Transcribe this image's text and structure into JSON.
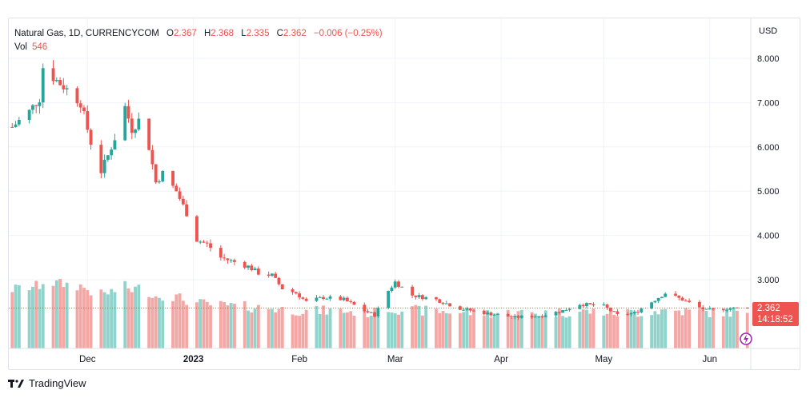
{
  "legend": {
    "symbol": "Natural Gas, 1D, CURRENCYCOM",
    "o_label": "O",
    "o_value": "2.367",
    "h_label": "H",
    "h_value": "2.368",
    "l_label": "L",
    "l_value": "2.335",
    "c_label": "C",
    "c_value": "2.362",
    "change": "−0.006 (−0.25%)",
    "vol_label": "Vol",
    "vol_value": "546"
  },
  "axis": {
    "currency": "USD"
  },
  "price_tag": {
    "price": "2.362",
    "countdown": "14:18:52"
  },
  "brand": {
    "name": "TradingView",
    "logo_icon": "tradingview-logo-icon"
  },
  "colors": {
    "up": "#26a69a",
    "down": "#ef5350",
    "up_vol": "#8fd3cb",
    "down_vol": "#f5a7a6",
    "grid": "#f0f3fa"
  },
  "chart_data": {
    "type": "candlestick",
    "yticks": [
      3,
      4,
      5,
      6,
      7,
      8
    ],
    "ytick_labels": [
      "3.000",
      "4.000",
      "5.000",
      "6.000",
      "7.000",
      "8.000"
    ],
    "ylim": [
      2.2,
      8.6
    ],
    "xticks": [
      {
        "label": "Dec",
        "date": "2022-12-01"
      },
      {
        "label": "2023",
        "date": "2023-01-01"
      },
      {
        "label": "Feb",
        "date": "2023-02-01"
      },
      {
        "label": "Mar",
        "date": "2023-03-01"
      },
      {
        "label": "Apr",
        "date": "2023-04-01"
      },
      {
        "label": "May",
        "date": "2023-05-01"
      },
      {
        "label": "Jun",
        "date": "2023-06-01"
      }
    ],
    "xlim": [
      "2022-11-08",
      "2023-06-13"
    ],
    "last_price": 2.362,
    "close_anchors": [
      [
        "2022-11-09",
        6.45
      ],
      [
        "2022-11-14",
        6.8
      ],
      [
        "2022-11-17",
        7.1
      ],
      [
        "2022-11-18",
        7.8
      ],
      [
        "2022-11-22",
        7.5
      ],
      [
        "2022-11-25",
        7.3
      ],
      [
        "2022-11-29",
        7.0
      ],
      [
        "2022-12-02",
        6.1
      ],
      [
        "2022-12-05",
        5.45
      ],
      [
        "2022-12-07",
        5.8
      ],
      [
        "2022-12-09",
        6.2
      ],
      [
        "2022-12-12",
        6.9
      ],
      [
        "2022-12-14",
        6.4
      ],
      [
        "2022-12-16",
        6.6
      ],
      [
        "2022-12-19",
        6.0
      ],
      [
        "2022-12-21",
        5.2
      ],
      [
        "2022-12-23",
        5.4
      ],
      [
        "2022-12-27",
        5.0
      ],
      [
        "2022-12-30",
        4.5
      ],
      [
        "2023-01-02",
        3.9
      ],
      [
        "2023-01-05",
        3.8
      ],
      [
        "2023-01-09",
        3.5
      ],
      [
        "2023-01-13",
        3.4
      ],
      [
        "2023-01-17",
        3.3
      ],
      [
        "2023-01-20",
        3.15
      ],
      [
        "2023-01-24",
        3.1
      ],
      [
        "2023-01-27",
        2.8
      ],
      [
        "2023-01-31",
        2.7
      ],
      [
        "2023-02-03",
        2.5
      ],
      [
        "2023-02-08",
        2.6
      ],
      [
        "2023-02-14",
        2.55
      ],
      [
        "2023-02-20",
        2.3
      ],
      [
        "2023-02-23",
        2.2
      ],
      [
        "2023-02-27",
        2.75
      ],
      [
        "2023-03-01",
        2.95
      ],
      [
        "2023-03-06",
        2.65
      ],
      [
        "2023-03-13",
        2.55
      ],
      [
        "2023-03-20",
        2.35
      ],
      [
        "2023-03-27",
        2.25
      ],
      [
        "2023-04-05",
        2.15
      ],
      [
        "2023-04-12",
        2.18
      ],
      [
        "2023-04-19",
        2.3
      ],
      [
        "2023-04-24",
        2.45
      ],
      [
        "2023-05-01",
        2.4
      ],
      [
        "2023-05-05",
        2.2
      ],
      [
        "2023-05-10",
        2.25
      ],
      [
        "2023-05-15",
        2.5
      ],
      [
        "2023-05-19",
        2.7
      ],
      [
        "2023-05-24",
        2.55
      ],
      [
        "2023-05-31",
        2.3
      ],
      [
        "2023-06-06",
        2.35
      ],
      [
        "2023-06-12",
        2.362
      ]
    ]
  }
}
